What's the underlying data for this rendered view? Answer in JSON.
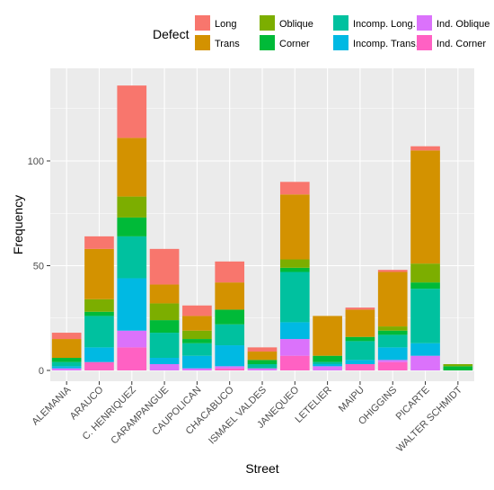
{
  "chart_data": {
    "type": "bar",
    "stacked": true,
    "title": "",
    "xlabel": "Street",
    "ylabel": "Frequency",
    "ylim": [
      0,
      140
    ],
    "yticks": [
      0,
      50,
      100
    ],
    "grid": true,
    "legend_position": "top",
    "legend_title": "Defect",
    "categories": [
      "ALEMANIA",
      "ARAUCO",
      "C. HENRIQUEZ",
      "CARAMPANGUE",
      "CAUPOLICAN",
      "CHACABUCO",
      "ISMAEL VALDES",
      "JANEQUEO",
      "LETELIER",
      "MAIPU",
      "OHIGGINS",
      "PICARTE",
      "WALTER SCHMIDT"
    ],
    "series": [
      {
        "name": "Ind. Corner",
        "color": "#FF61C3",
        "values": [
          0,
          4,
          11,
          0,
          0,
          1,
          0,
          7,
          0,
          3,
          4,
          0,
          0
        ]
      },
      {
        "name": "Ind. Oblique",
        "color": "#DB72FB",
        "values": [
          1,
          0,
          8,
          3,
          1,
          1,
          1,
          8,
          2,
          0,
          1,
          7,
          0
        ]
      },
      {
        "name": "Incomp. Trans.",
        "color": "#00B9E3",
        "values": [
          1,
          7,
          25,
          3,
          6,
          10,
          0,
          8,
          1,
          2,
          6,
          6,
          0
        ]
      },
      {
        "name": "Incomp. Long.",
        "color": "#00C19F",
        "values": [
          2,
          15,
          20,
          12,
          6,
          10,
          2,
          24,
          1,
          9,
          6,
          26,
          0
        ]
      },
      {
        "name": "Corner",
        "color": "#00BA38",
        "values": [
          2,
          2,
          9,
          6,
          2,
          7,
          2,
          2,
          3,
          2,
          2,
          3,
          2
        ]
      },
      {
        "name": "Oblique",
        "color": "#7CAE00",
        "values": [
          0,
          6,
          10,
          8,
          4,
          0,
          0,
          4,
          0,
          0,
          2,
          9,
          1
        ]
      },
      {
        "name": "Trans",
        "color": "#D39200",
        "values": [
          9,
          24,
          28,
          9,
          7,
          13,
          4,
          31,
          19,
          13,
          26,
          54,
          0
        ]
      },
      {
        "name": "Long",
        "color": "#F8766D",
        "values": [
          3,
          6,
          25,
          17,
          5,
          10,
          2,
          6,
          0,
          1,
          1,
          2,
          0
        ]
      }
    ]
  }
}
